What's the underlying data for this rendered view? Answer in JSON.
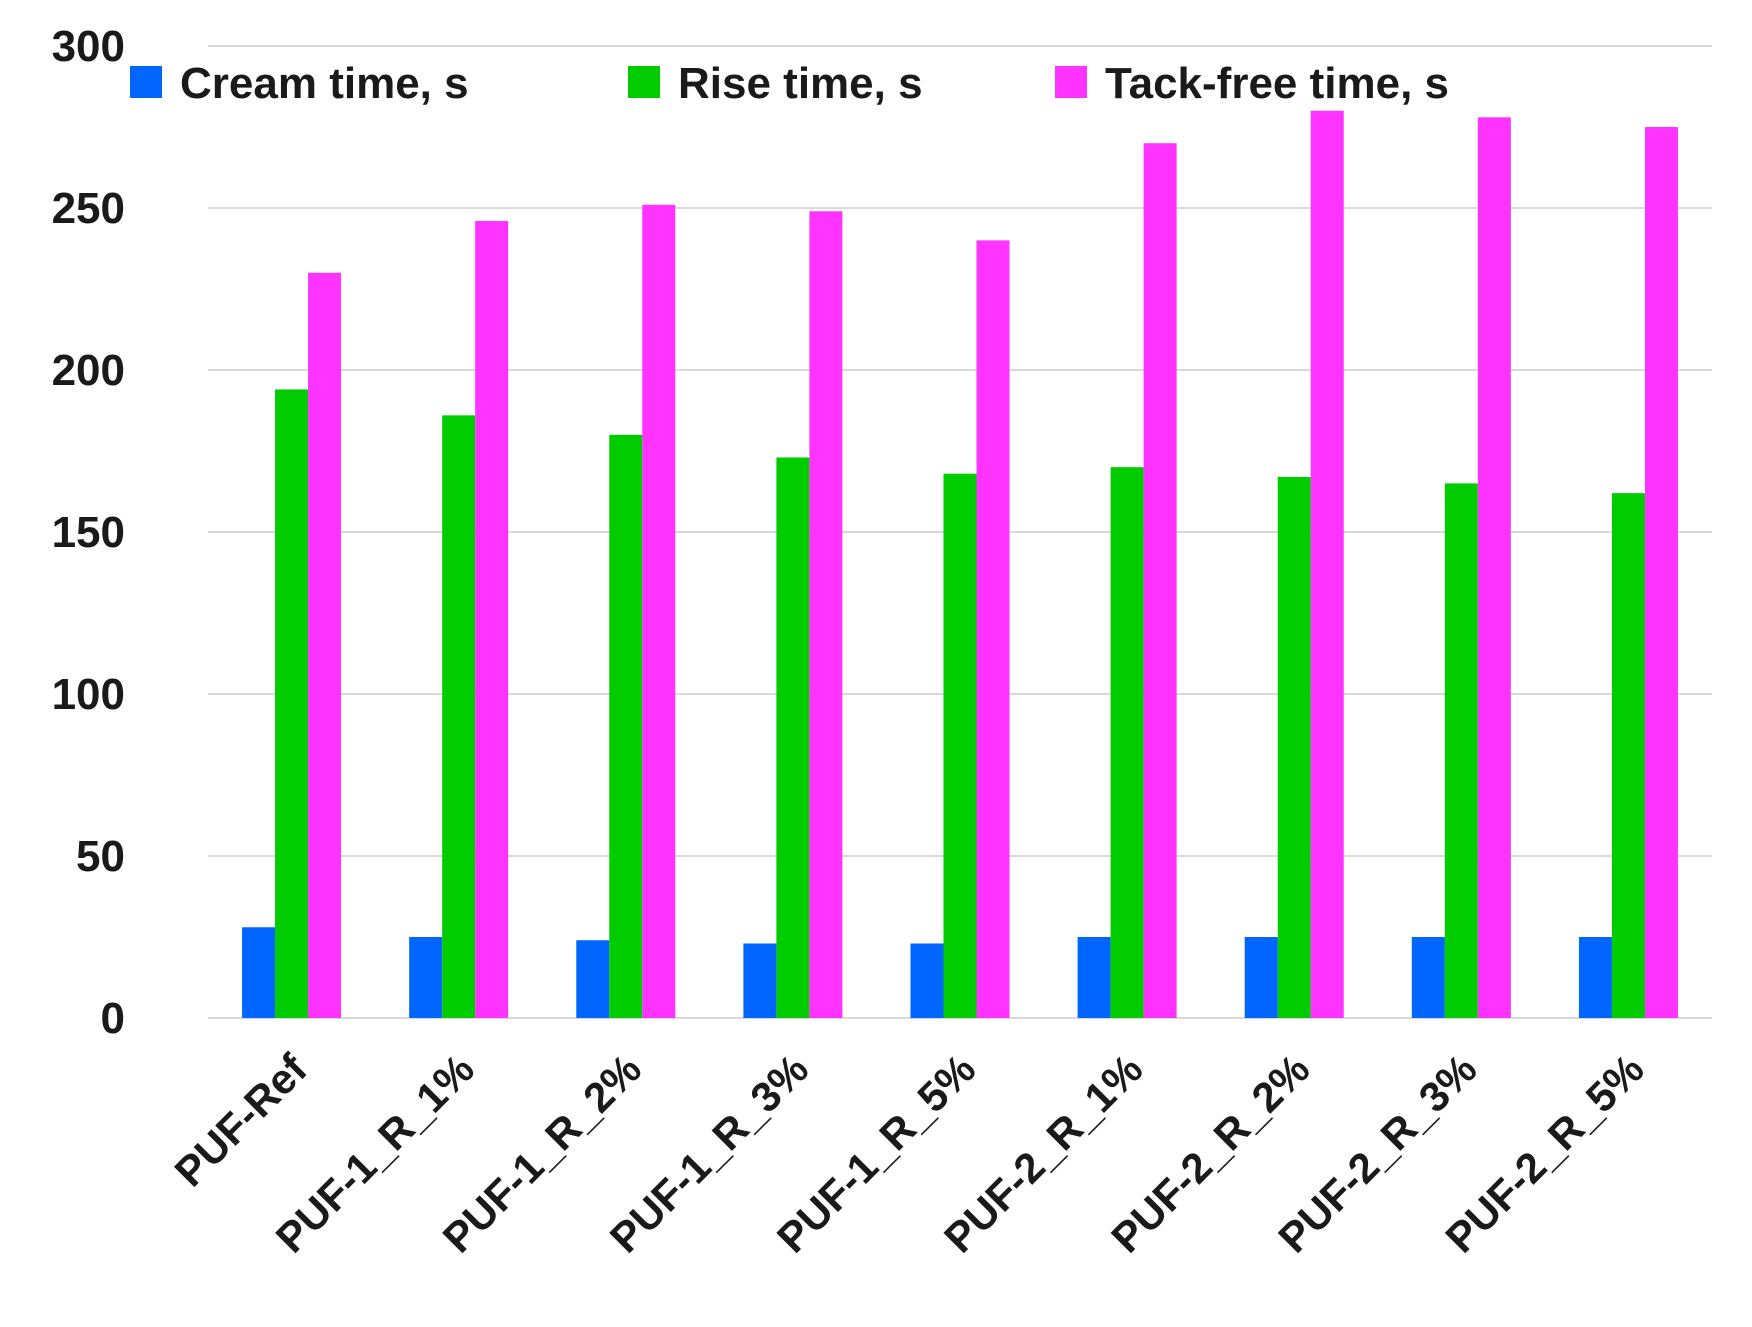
{
  "chart_data": {
    "type": "bar",
    "title": "",
    "xlabel": "",
    "ylabel": "",
    "ylim": [
      0,
      300
    ],
    "yticks": [
      0,
      50,
      100,
      150,
      200,
      250,
      300
    ],
    "grid": true,
    "legend_position": "top",
    "categories": [
      "PUF-Ref",
      "PUF-1_R_1%",
      "PUF-1_R_2%",
      "PUF-1_R_3%",
      "PUF-1_R_5%",
      "PUF-2_R_1%",
      "PUF-2_R_2%",
      "PUF-2_R_3%",
      "PUF-2_R_5%"
    ],
    "series": [
      {
        "name": "Cream time, s",
        "color": "#0066ff",
        "values": [
          28,
          25,
          24,
          23,
          23,
          25,
          25,
          25,
          25
        ]
      },
      {
        "name": "Rise time, s",
        "color": "#00cc00",
        "values": [
          194,
          186,
          180,
          173,
          168,
          170,
          167,
          165,
          162
        ]
      },
      {
        "name": "Tack-free time, s",
        "color": "#ff33ff",
        "values": [
          230,
          246,
          251,
          249,
          240,
          270,
          280,
          278,
          275
        ]
      }
    ]
  }
}
